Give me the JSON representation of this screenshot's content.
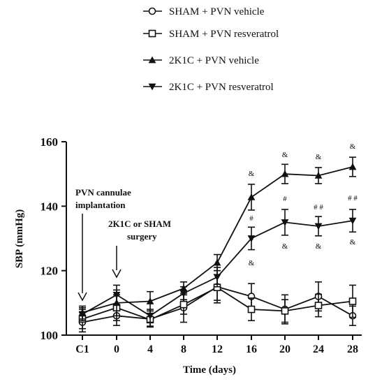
{
  "chart_data": {
    "type": "line",
    "xlabel": "Time (days)",
    "ylabel": "SBP (mmHg)",
    "ylim": [
      100,
      160
    ],
    "yticks": [
      "100",
      "120",
      "140",
      "160"
    ],
    "categories": [
      "C1",
      "0",
      "4",
      "8",
      "12",
      "16",
      "20",
      "24",
      "28"
    ],
    "legend_position": "top-center",
    "grid": false,
    "series": [
      {
        "name": "SHAM + PVN vehicle",
        "marker": "circle-open",
        "values": [
          104,
          106,
          105,
          108.5,
          115,
          112,
          108,
          112,
          106
        ],
        "errors": [
          3,
          3,
          2.5,
          4.5,
          5,
          4,
          4.5,
          4.5,
          3
        ]
      },
      {
        "name": "SHAM + PVN resveratrol",
        "marker": "square-open",
        "values": [
          105,
          108.5,
          104.8,
          109.5,
          114.8,
          108,
          107.5,
          109.2,
          110.5
        ],
        "errors": [
          3,
          4,
          2,
          3,
          4,
          3.5,
          3.5,
          3.5,
          5
        ]
      },
      {
        "name": "2K1C + PVN vehicle",
        "marker": "triangle-up",
        "values": [
          107,
          110,
          110.5,
          114.5,
          122.5,
          142.8,
          150,
          149.5,
          152.2
        ],
        "errors": [
          2,
          4,
          3,
          2,
          2.5,
          4,
          3,
          2.5,
          3
        ]
      },
      {
        "name": "2K1C + PVN resveratrol",
        "marker": "triangle-down",
        "values": [
          106.5,
          112.5,
          106,
          113,
          118,
          130,
          135,
          133.8,
          135.5
        ],
        "errors": [
          2,
          3,
          2,
          2,
          3,
          3.5,
          4,
          3,
          3.5
        ]
      }
    ],
    "annotations": {
      "arrow1_text_line1": "PVN cannulae",
      "arrow1_text_line2": "implantation",
      "arrow2_text_line1": "2K1C or SHAM",
      "arrow2_text_line2": "surgery",
      "amp": "&",
      "hash": "#",
      "hash2": "# #"
    }
  }
}
